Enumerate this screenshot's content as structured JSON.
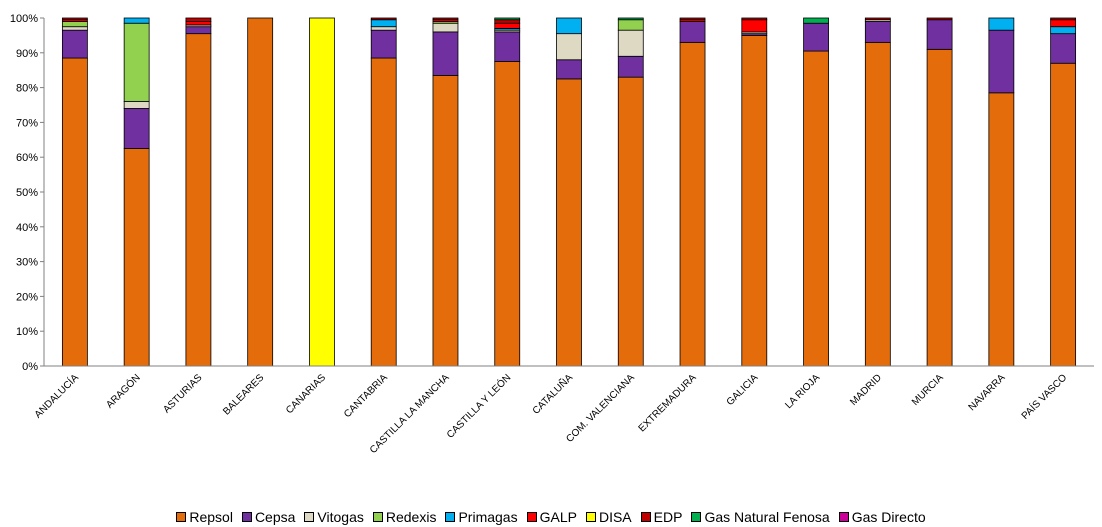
{
  "chart_data": {
    "type": "bar",
    "stacked": true,
    "title": "",
    "xlabel": "",
    "ylabel": "",
    "ylim": [
      0,
      100
    ],
    "y_ticks": [
      "0%",
      "10%",
      "20%",
      "30%",
      "40%",
      "50%",
      "60%",
      "70%",
      "80%",
      "90%",
      "100%"
    ],
    "grid": false,
    "legend_position": "bottom",
    "categories": [
      "ANDALUCÍA",
      "ARAGÓN",
      "ASTURIAS",
      "BALEARES",
      "CANARIAS",
      "CANTABRIA",
      "CASTILLA LA MANCHA",
      "CASTILLA Y LEÓN",
      "CATALUÑA",
      "COM. VALENCIANA",
      "EXTREMADURA",
      "GALICIA",
      "LA RIOJA",
      "MADRID",
      "MURCIA",
      "NAVARRA",
      "PAÍS VASCO"
    ],
    "series": [
      {
        "name": "Repsol",
        "color": "#e46c0a",
        "values": [
          88.5,
          62.5,
          95.5,
          100,
          0,
          88.5,
          83.5,
          87.5,
          82.5,
          83,
          93,
          95,
          90.5,
          93,
          91,
          78.5,
          87
        ]
      },
      {
        "name": "Cepsa",
        "color": "#7030a0",
        "values": [
          8,
          11.5,
          2,
          0,
          0,
          8,
          12.5,
          8.5,
          5.5,
          6,
          6,
          0.5,
          8,
          6,
          8.5,
          18,
          8.5
        ]
      },
      {
        "name": "Vitogas",
        "color": "#ddd9c3",
        "values": [
          1,
          2,
          0.5,
          0,
          0,
          1,
          2.5,
          0.5,
          7.5,
          7.5,
          0,
          0.5,
          0,
          0.5,
          0,
          0,
          0
        ]
      },
      {
        "name": "Redexis",
        "color": "#92d050",
        "values": [
          1.5,
          22.5,
          0,
          0,
          0,
          0,
          0.5,
          0,
          0,
          3,
          0,
          0,
          0,
          0,
          0,
          0,
          0
        ]
      },
      {
        "name": "Primagas",
        "color": "#00b0f0",
        "values": [
          0,
          1.5,
          0,
          0,
          0,
          2,
          0,
          0.5,
          4.5,
          0,
          0,
          0,
          0,
          0,
          0,
          3.5,
          2
        ]
      },
      {
        "name": "GALP",
        "color": "#ff0000",
        "values": [
          0.5,
          0,
          1,
          0,
          0,
          0,
          0.5,
          1.5,
          0,
          0,
          0.5,
          3.5,
          0,
          0,
          0,
          0,
          2
        ]
      },
      {
        "name": "DISA",
        "color": "#ffff00",
        "values": [
          0,
          0,
          0,
          0,
          100,
          0,
          0,
          0,
          0,
          0,
          0,
          0,
          0,
          0,
          0,
          0,
          0
        ]
      },
      {
        "name": "EDP",
        "color": "#c00000",
        "values": [
          0.5,
          0,
          1,
          0,
          0,
          0.5,
          0.5,
          1,
          0,
          0,
          0.5,
          0.5,
          0,
          0.5,
          0.5,
          0,
          0.5
        ]
      },
      {
        "name": "Gas Natural Fenosa",
        "color": "#00b050",
        "values": [
          0,
          0,
          0,
          0,
          0,
          0,
          0,
          0.5,
          0,
          0.5,
          0,
          0,
          1.5,
          0,
          0,
          0,
          0
        ]
      },
      {
        "name": "Gas Directo",
        "color": "#cc0099",
        "values": [
          0,
          0,
          0,
          0,
          0,
          0,
          0,
          0,
          0,
          0,
          0,
          0,
          0,
          0,
          0,
          0,
          0
        ]
      }
    ]
  }
}
